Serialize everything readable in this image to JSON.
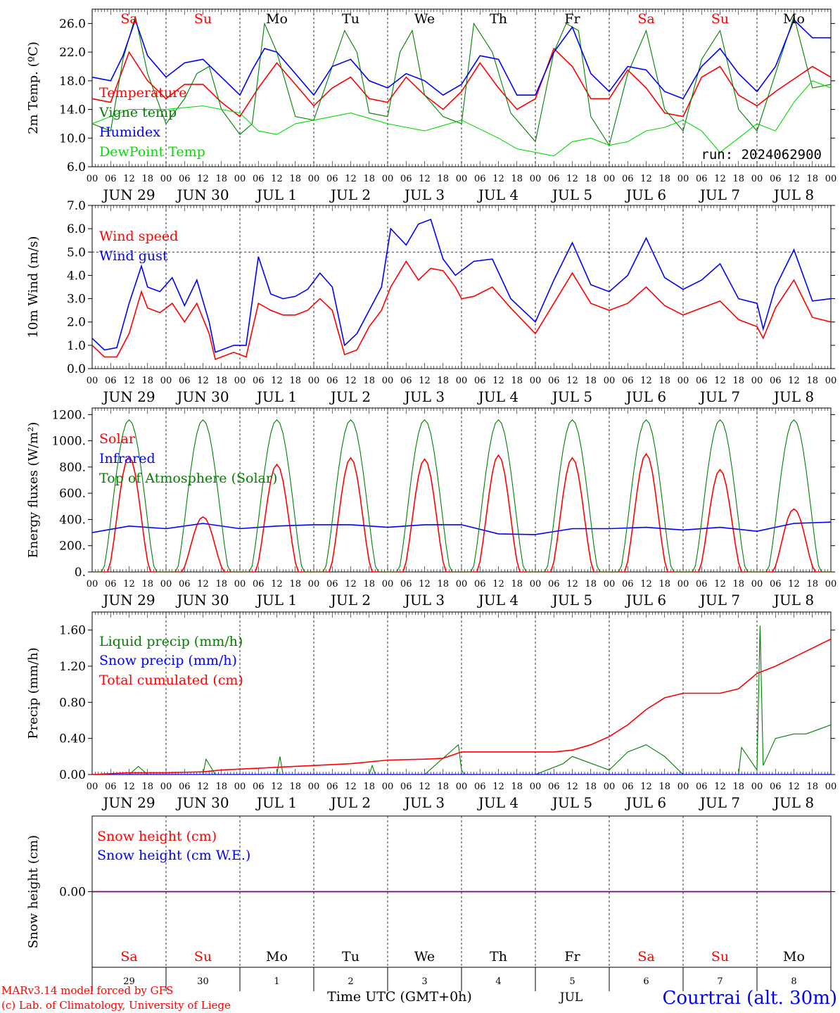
{
  "run_label": "run: 2024062900",
  "credits": {
    "line1": "MARv3.14 model forced by GFS",
    "line2": "(c) Lab. of Climatology, University of Liege"
  },
  "footer": {
    "time_label": "Time UTC (GMT+0h)",
    "month_label": "JUL",
    "location": "Courtrai (alt. 30m)"
  },
  "x_axis": {
    "hour_ticks": [
      "00",
      "06",
      "12",
      "18"
    ],
    "date_labels": [
      "JUN 29",
      "JUN 30",
      "JUL  1",
      "JUL  2",
      "JUL  3",
      "JUL  4",
      "JUL  5",
      "JUL  6",
      "JUL  7",
      "JUL  8"
    ],
    "weekdays": [
      "Sa",
      "Su",
      "Mo",
      "Tu",
      "We",
      "Th",
      "Fr",
      "Sa",
      "Su",
      "Mo"
    ],
    "weekend_color": "#ff0000",
    "weekday_color": "#000000",
    "day_numbers": [
      "29",
      "30",
      "1",
      "2",
      "3",
      "4",
      "5",
      "6",
      "7",
      "8"
    ]
  },
  "colors": {
    "red": "#ff0000",
    "green": "#008000",
    "blue": "#0000ff",
    "light_green": "#00dd00",
    "purple": "#800080"
  },
  "chart_data": [
    {
      "type": "line",
      "ylabel": "2m Temp. (ºC)",
      "ylim": [
        6,
        28
      ],
      "yticks": [
        "6.0",
        "10.0",
        "14.0",
        "18.0",
        "22.0",
        "26.0"
      ],
      "x_unit": "hours since JUN 29 00 UTC",
      "series": [
        {
          "name": "Temperature",
          "color": "#ff0000",
          "x": [
            0,
            6,
            12,
            18,
            24,
            30,
            36,
            42,
            48,
            54,
            60,
            66,
            72,
            78,
            84,
            90,
            96,
            102,
            108,
            114,
            120,
            126,
            132,
            138,
            144,
            150,
            156,
            162,
            168,
            174,
            180,
            186,
            192,
            198,
            204,
            210,
            216,
            222,
            234,
            240
          ],
          "values": [
            15.5,
            15.0,
            22.0,
            18.0,
            15.5,
            17.5,
            17.5,
            15.0,
            13.0,
            17.0,
            20.5,
            17.5,
            14.5,
            17.0,
            18.5,
            15.5,
            15.0,
            18.5,
            16.0,
            14.0,
            16.5,
            20.5,
            17.0,
            14.0,
            15.5,
            22.5,
            20.0,
            15.5,
            15.5,
            19.5,
            17.0,
            13.5,
            13.0,
            18.5,
            20.0,
            16.0,
            14.5,
            16.5,
            20.0,
            18.5
          ]
        },
        {
          "name": "Vigne temp",
          "color": "#008000",
          "x": [
            0,
            6,
            10,
            14,
            18,
            24,
            30,
            34,
            38,
            42,
            48,
            52,
            56,
            60,
            66,
            72,
            78,
            82,
            86,
            90,
            96,
            100,
            104,
            108,
            114,
            120,
            124,
            130,
            136,
            144,
            150,
            154,
            158,
            162,
            168,
            174,
            180,
            186,
            192,
            198,
            204,
            210,
            216,
            222,
            228,
            234,
            240
          ],
          "values": [
            12.0,
            11.0,
            21.0,
            27.0,
            19.0,
            12.0,
            15.5,
            19.0,
            20.0,
            14.0,
            10.5,
            12.0,
            26.0,
            22.0,
            13.0,
            12.5,
            20.0,
            25.0,
            22.0,
            13.5,
            13.0,
            22.0,
            25.0,
            16.0,
            13.0,
            12.0,
            26.0,
            22.0,
            13.5,
            9.5,
            22.0,
            26.0,
            25.0,
            13.0,
            9.0,
            19.0,
            25.0,
            14.0,
            11.0,
            21.0,
            25.0,
            14.0,
            11.0,
            19.0,
            27.0,
            17.0,
            17.5
          ]
        },
        {
          "name": "Humidex",
          "color": "#0000ff",
          "x": [
            0,
            6,
            10,
            14,
            18,
            24,
            30,
            36,
            42,
            48,
            52,
            56,
            60,
            66,
            72,
            78,
            84,
            90,
            96,
            102,
            108,
            114,
            120,
            126,
            132,
            138,
            144,
            150,
            156,
            162,
            168,
            174,
            180,
            186,
            192,
            198,
            204,
            210,
            216,
            222,
            228,
            234,
            240
          ],
          "values": [
            18.5,
            18.0,
            21.5,
            26.5,
            21.5,
            18.5,
            20.5,
            21.0,
            18.5,
            16.0,
            19.5,
            22.5,
            22.0,
            19.0,
            16.0,
            20.0,
            21.0,
            18.0,
            17.0,
            19.0,
            18.0,
            16.0,
            17.5,
            21.5,
            21.0,
            16.0,
            16.0,
            22.0,
            25.5,
            19.0,
            16.5,
            20.0,
            19.5,
            16.5,
            15.5,
            20.0,
            22.5,
            19.0,
            16.5,
            20.0,
            26.5,
            24.0,
            24.0
          ]
        },
        {
          "name": "DewPoint Temp",
          "color": "#00dd00",
          "x": [
            0,
            12,
            24,
            36,
            48,
            54,
            60,
            66,
            72,
            84,
            96,
            108,
            120,
            132,
            138,
            144,
            150,
            156,
            162,
            168,
            174,
            180,
            186,
            192,
            198,
            204,
            210,
            216,
            222,
            228,
            234,
            240
          ],
          "values": [
            12.0,
            14.0,
            14.0,
            14.5,
            13.5,
            11.0,
            10.5,
            12.0,
            12.5,
            13.5,
            12.0,
            11.0,
            12.5,
            10.0,
            8.5,
            8.0,
            7.5,
            9.5,
            10.0,
            9.0,
            9.5,
            11.0,
            11.5,
            12.5,
            11.0,
            8.0,
            10.0,
            12.0,
            11.0,
            15.0,
            18.0,
            17.0
          ]
        }
      ]
    },
    {
      "type": "line",
      "ylabel": "10m Wind (m/s)",
      "ylim": [
        0,
        7
      ],
      "yticks": [
        "0.0",
        "1.0",
        "2.0",
        "3.0",
        "4.0",
        "5.0",
        "6.0",
        "7.0"
      ],
      "reference_line": 5.0,
      "series": [
        {
          "name": "Wind speed",
          "color": "#ff0000",
          "x": [
            0,
            4,
            8,
            12,
            16,
            18,
            22,
            26,
            30,
            34,
            38,
            40,
            46,
            50,
            54,
            58,
            62,
            66,
            70,
            74,
            78,
            82,
            86,
            90,
            94,
            97,
            102,
            106,
            110,
            114,
            118,
            120,
            124,
            130,
            136,
            144,
            150,
            156,
            162,
            168,
            174,
            180,
            186,
            192,
            198,
            204,
            210,
            216,
            218,
            222,
            228,
            234,
            240
          ],
          "values": [
            1.0,
            0.5,
            0.5,
            1.5,
            3.3,
            2.6,
            2.4,
            2.8,
            2.0,
            2.8,
            1.5,
            0.4,
            0.7,
            0.5,
            2.8,
            2.5,
            2.3,
            2.3,
            2.5,
            3.0,
            2.5,
            0.6,
            0.8,
            1.8,
            2.5,
            3.5,
            4.6,
            3.8,
            4.3,
            4.2,
            3.5,
            3.0,
            3.1,
            3.5,
            2.6,
            1.5,
            2.8,
            4.1,
            2.8,
            2.5,
            2.8,
            3.5,
            2.7,
            2.3,
            2.6,
            2.9,
            2.1,
            1.8,
            1.3,
            2.6,
            3.8,
            2.2,
            2.0
          ]
        },
        {
          "name": "Wind gust",
          "color": "#0000ff",
          "x": [
            0,
            4,
            8,
            12,
            16,
            18,
            22,
            26,
            30,
            34,
            38,
            40,
            46,
            50,
            54,
            58,
            62,
            66,
            70,
            74,
            78,
            82,
            86,
            90,
            94,
            97,
            102,
            106,
            110,
            114,
            118,
            120,
            124,
            130,
            136,
            144,
            150,
            156,
            162,
            168,
            174,
            180,
            186,
            192,
            198,
            204,
            210,
            216,
            218,
            222,
            228,
            234,
            240
          ],
          "values": [
            1.3,
            0.8,
            0.9,
            2.8,
            4.4,
            3.5,
            3.3,
            3.9,
            2.7,
            3.8,
            2.0,
            0.7,
            1.0,
            1.0,
            4.8,
            3.2,
            3.0,
            3.1,
            3.4,
            4.1,
            3.5,
            1.0,
            1.5,
            2.5,
            3.5,
            6.0,
            5.3,
            6.2,
            6.4,
            4.7,
            4.0,
            4.2,
            4.6,
            4.7,
            3.0,
            2.0,
            3.8,
            5.4,
            3.6,
            3.3,
            4.0,
            5.6,
            3.9,
            3.4,
            3.8,
            4.5,
            3.0,
            2.8,
            1.7,
            3.5,
            5.1,
            2.9,
            3.0
          ]
        }
      ]
    },
    {
      "type": "line",
      "ylabel": "Energy fluxes (W/m²)",
      "ylim": [
        0,
        1250
      ],
      "yticks": [
        "0.",
        "200.",
        "400.",
        "600.",
        "800.",
        "1000.",
        "1200."
      ],
      "series": [
        {
          "name": "Solar",
          "color": "#ff0000",
          "daily_peaks": [
            880,
            420,
            820,
            870,
            860,
            890,
            870,
            900,
            780,
            480
          ]
        },
        {
          "name": "Infrared",
          "color": "#0000ff",
          "x": [
            0,
            12,
            24,
            36,
            48,
            60,
            72,
            84,
            96,
            108,
            120,
            132,
            144,
            156,
            168,
            180,
            192,
            204,
            216,
            228,
            240
          ],
          "values": [
            300,
            350,
            330,
            370,
            330,
            350,
            360,
            360,
            340,
            360,
            360,
            290,
            285,
            330,
            330,
            340,
            320,
            340,
            310,
            370,
            380
          ]
        },
        {
          "name": "Top of Atmosphere (Solar)",
          "color": "#008000",
          "daily_peak": 1160
        }
      ]
    },
    {
      "type": "line",
      "ylabel": "Precip (mm/h)",
      "ylim": [
        0,
        1.8
      ],
      "yticks": [
        "0.00",
        "0.40",
        "0.80",
        "1.20",
        "1.60"
      ],
      "series": [
        {
          "name": "Liquid precip (mm/h)",
          "color": "#008000",
          "x": [
            0,
            12,
            15,
            18,
            36,
            37,
            40,
            60,
            61,
            62,
            72,
            90,
            91,
            92,
            108,
            119,
            120,
            121,
            144,
            153,
            156,
            168,
            174,
            180,
            186,
            192,
            210,
            211,
            216,
            217,
            218,
            222,
            228,
            232,
            236,
            240
          ],
          "values": [
            0,
            0,
            0.09,
            0,
            0,
            0.17,
            0,
            0,
            0.2,
            0,
            0,
            0,
            0.1,
            0,
            0,
            0.33,
            0.05,
            0,
            0,
            0.12,
            0.2,
            0.05,
            0.25,
            0.33,
            0.2,
            0,
            0,
            0.3,
            0.05,
            1.65,
            0.1,
            0.4,
            0.45,
            0.45,
            0.5,
            0.55
          ]
        },
        {
          "name": "Snow precip (mm/h)",
          "color": "#0000ff",
          "values": [
            0
          ]
        },
        {
          "name": "Total cumulated (cm)",
          "color": "#ff0000",
          "x": [
            0,
            12,
            24,
            36,
            42,
            48,
            60,
            72,
            84,
            96,
            108,
            114,
            120,
            126,
            132,
            144,
            150,
            156,
            162,
            168,
            174,
            180,
            186,
            192,
            204,
            210,
            216,
            222,
            228,
            234,
            240
          ],
          "values": [
            0,
            0.02,
            0.02,
            0.03,
            0.05,
            0.06,
            0.08,
            0.1,
            0.12,
            0.16,
            0.17,
            0.18,
            0.25,
            0.25,
            0.25,
            0.25,
            0.25,
            0.27,
            0.33,
            0.42,
            0.55,
            0.72,
            0.85,
            0.9,
            0.9,
            0.95,
            1.12,
            1.2,
            1.3,
            1.4,
            1.5
          ]
        }
      ]
    },
    {
      "type": "line",
      "ylabel": "Snow height (cm)",
      "yticks": [
        "0.00"
      ],
      "series": [
        {
          "name": "Snow height (cm)",
          "color": "#ff0000",
          "values": [
            0
          ]
        },
        {
          "name": "Snow height (cm W.E.)",
          "color": "#0000ff",
          "values": [
            0
          ]
        }
      ]
    }
  ]
}
